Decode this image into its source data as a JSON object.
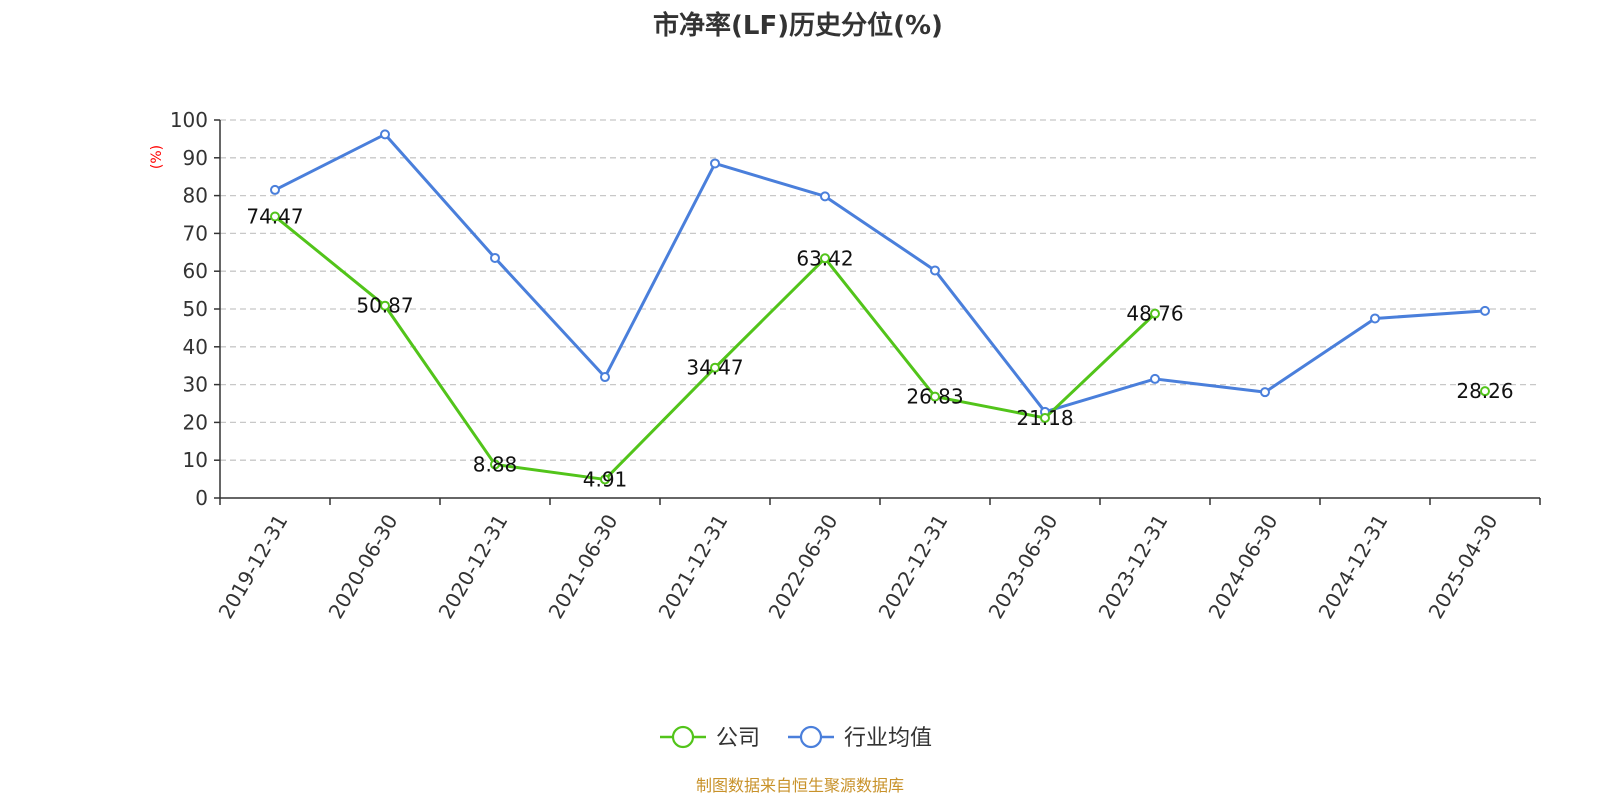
{
  "chart_data": {
    "type": "line",
    "title": "市净率(LF)历史分位(%)",
    "ylabel": "(%)",
    "ylim": [
      0,
      100
    ],
    "yticks": [
      0,
      10,
      20,
      30,
      40,
      50,
      60,
      70,
      80,
      90,
      100
    ],
    "grid": true,
    "categories": [
      "2019-12-31",
      "2020-06-30",
      "2020-12-31",
      "2021-06-30",
      "2021-12-31",
      "2022-06-30",
      "2022-12-31",
      "2023-06-30",
      "2023-12-31",
      "2024-06-30",
      "2024-12-31",
      "2025-04-30"
    ],
    "series": [
      {
        "name": "公司",
        "color": "#52c41a",
        "values": [
          74.47,
          50.87,
          8.88,
          4.91,
          34.47,
          63.42,
          26.83,
          21.18,
          48.76,
          null,
          null,
          28.26
        ],
        "labels": [
          "74.47",
          "50.87",
          "8.88",
          "4.91",
          "34.47",
          "63.42",
          "26.83",
          "21.18",
          "48.76",
          null,
          null,
          "28.26"
        ]
      },
      {
        "name": "行业均值",
        "color": "#4a7fdb",
        "values": [
          81.5,
          96.2,
          63.5,
          32.0,
          88.5,
          79.8,
          60.2,
          22.8,
          31.5,
          28.0,
          47.5,
          49.5
        ]
      }
    ],
    "legend_position": "bottom-center"
  },
  "footer": {
    "source": "制图数据来自恒生聚源数据库"
  }
}
